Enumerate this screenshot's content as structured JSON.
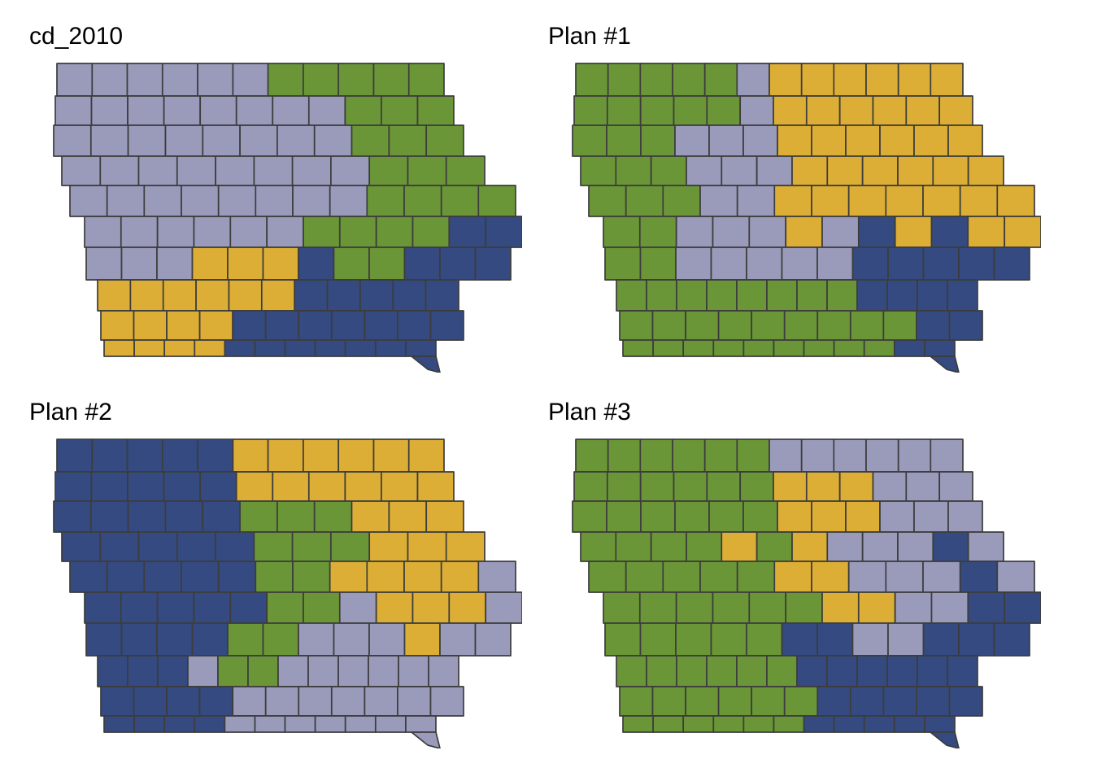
{
  "colors": {
    "lavender": "#9a9bbb",
    "green": "#6a9637",
    "gold": "#ddae35",
    "navy": "#344a80",
    "border": "#3c3c3c"
  },
  "panels": [
    {
      "id": "cd2010",
      "title": "cd_2010",
      "grid": [
        "LLLLLLGGGGG",
        "LLLLLLLLGGG",
        "LLLLLLLLGGG",
        "LLLLLLLLGGG",
        "LLLLLLLLGGGG",
        "LLLLLLGGGGNN",
        "LLLYYYNGGNNN",
        "YYYYYYNNNNN",
        "YYYYNNNNNNN",
        "YYYYNNNNNNN"
      ]
    },
    {
      "id": "plan1",
      "title": "Plan #1",
      "grid": [
        "GGGGGLYYYYYY",
        "GGGGGLYYYYYY",
        "GGGLLLYYYYYY",
        "GGGLLLYYYYYY",
        "GGGLLYYYYYYY",
        "GGLLLYLNYNYY",
        "GGLLLLLNNNNN",
        "GGGGGGGGNNNN",
        "GGGGGGGGGNN",
        "GGGGGGGGGNN"
      ]
    },
    {
      "id": "plan2",
      "title": "Plan #2",
      "grid": [
        "NNNNNYYYYYY",
        "NNNNNYYYYYY",
        "NNNNNGGGYYY",
        "NNNNNGGGYYY",
        "NNNNNGGYYYYL",
        "NNNNNGGLYYYL",
        "NNNNGGLLLYLL",
        "NNNLGGLLLLLL",
        "NNNNLLLLLLL",
        "NNNNLLLLLLL"
      ]
    },
    {
      "id": "plan3",
      "title": "Plan #3",
      "grid": [
        "GGGGGGLLLLLL",
        "GGGGGGYYYLLL",
        "GGGGGGYYYLLL",
        "GGGGYGYLLLNL",
        "GGGGGYYLLLNL",
        "GGGGGGYYLLNN",
        "GGGGGNNLLNNN",
        "GGGGGGNNNNNN",
        "GGGGGGNNNNN",
        "GGGGGGNNNNN"
      ]
    }
  ]
}
